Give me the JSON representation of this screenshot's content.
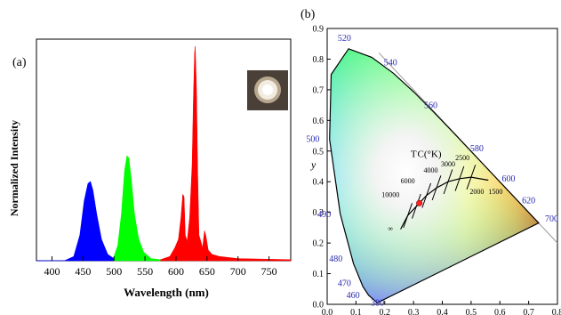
{
  "chart_data": [
    {
      "type": "area",
      "panel_label": "(a)",
      "xlabel": "Wavelength (nm)",
      "ylabel": "Normalized Intensity",
      "xlim": [
        375,
        785
      ],
      "ylim": [
        0,
        1
      ],
      "x_ticks": [
        400,
        450,
        500,
        550,
        600,
        650,
        700,
        750
      ],
      "inset": "photo of lit white LED",
      "series": [
        {
          "color": "#0000ff",
          "x": [
            375,
            420,
            435,
            445,
            452,
            458,
            462,
            466,
            472,
            480,
            490,
            500
          ],
          "values": [
            0,
            0,
            0.02,
            0.12,
            0.28,
            0.36,
            0.37,
            0.33,
            0.22,
            0.1,
            0.03,
            0.01
          ]
        },
        {
          "color": "#00ff00",
          "x": [
            500,
            506,
            512,
            517,
            521,
            524,
            528,
            533,
            540,
            548,
            560,
            575
          ],
          "values": [
            0.02,
            0.07,
            0.22,
            0.42,
            0.49,
            0.48,
            0.38,
            0.22,
            0.1,
            0.04,
            0.01,
            0.005
          ]
        },
        {
          "color": "#ff0000",
          "x": [
            575,
            590,
            598,
            604,
            608,
            611,
            613,
            615,
            618,
            622,
            626,
            628,
            630,
            631,
            633,
            635,
            637,
            640,
            643,
            646,
            648,
            652,
            658,
            670,
            700,
            785
          ],
          "values": [
            0.005,
            0.02,
            0.06,
            0.1,
            0.2,
            0.31,
            0.3,
            0.12,
            0.09,
            0.2,
            0.45,
            0.75,
            0.97,
            1.0,
            0.8,
            0.4,
            0.12,
            0.09,
            0.06,
            0.14,
            0.12,
            0.05,
            0.03,
            0.02,
            0.01,
            0.005
          ]
        }
      ]
    },
    {
      "type": "scatter",
      "panel_label": "(b)",
      "subtype": "CIE 1931 chromaticity diagram",
      "xlabel": "",
      "ylabel": "y",
      "xlim": [
        0,
        0.8
      ],
      "ylim": [
        0,
        0.9
      ],
      "x_ticks": [
        "0.0",
        "0.1",
        "0.2",
        "0.3",
        "0.4",
        "0.5",
        "0.6",
        "0.7",
        "0.8"
      ],
      "y_ticks": [
        "0.0",
        "0.1",
        "0.2",
        "0.3",
        "0.4",
        "0.5",
        "0.6",
        "0.7",
        "0.8",
        "0.9"
      ],
      "locus_wavelengths": [
        "380",
        "460",
        "470",
        "480",
        "490",
        "500",
        "520",
        "540",
        "560",
        "580",
        "600",
        "620",
        "700"
      ],
      "planckian_label": "T C(°K)",
      "cct_labels": [
        "10000",
        "6000",
        "4000",
        "3000",
        "2500",
        "2000",
        "1500",
        "∞"
      ],
      "point": {
        "x": 0.32,
        "y": 0.33,
        "color": "#ff2020"
      }
    }
  ]
}
